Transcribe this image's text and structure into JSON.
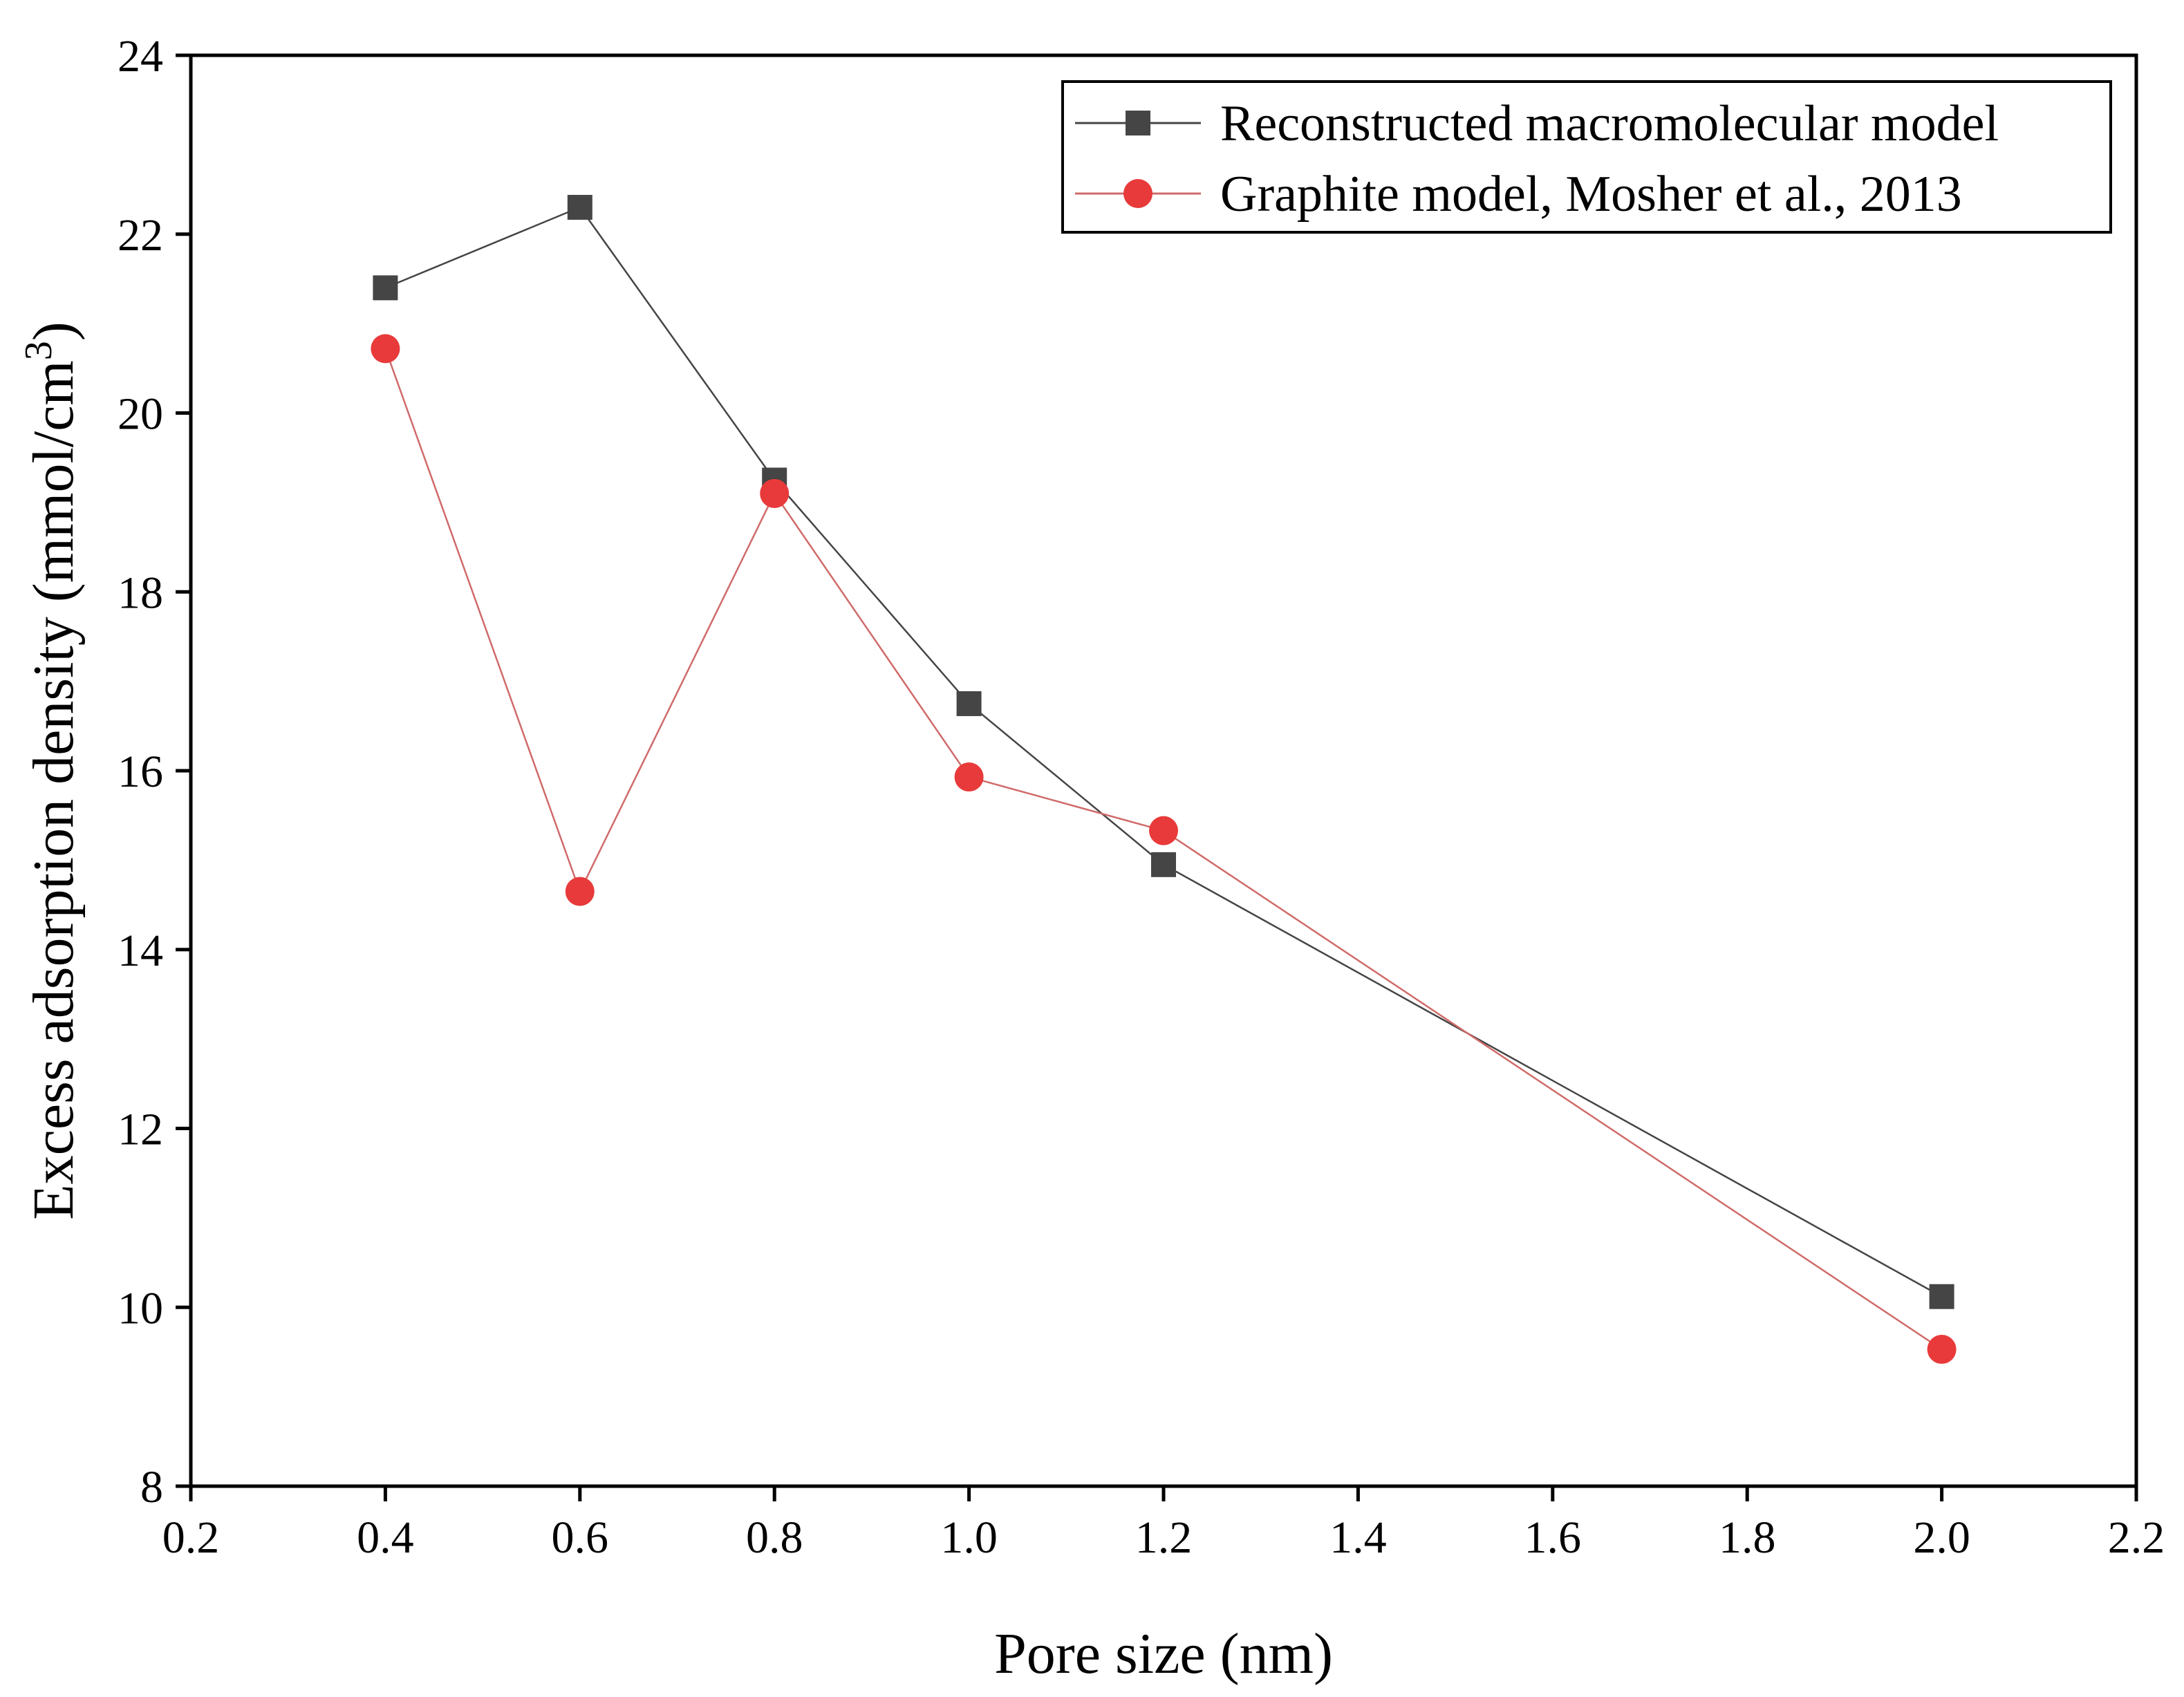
{
  "chart_data": {
    "type": "line",
    "title": "",
    "xlabel": "Pore size (nm)",
    "ylabel": "Excess adsorption density (mmol/cm",
    "ylabel_superscript": "3",
    "ylabel_suffix": ")",
    "xlim": [
      0.2,
      2.2
    ],
    "ylim": [
      8,
      24
    ],
    "x_ticks": [
      0.2,
      0.4,
      0.6,
      0.8,
      1.0,
      1.2,
      1.4,
      1.6,
      1.8,
      2.0,
      2.2
    ],
    "x_tick_labels": [
      "0.2",
      "0.4",
      "0.6",
      "0.8",
      "1.0",
      "1.2",
      "1.4",
      "1.6",
      "1.8",
      "2.0",
      "2.2"
    ],
    "y_ticks": [
      8,
      10,
      12,
      14,
      16,
      18,
      20,
      22,
      24
    ],
    "y_tick_labels": [
      "8",
      "10",
      "12",
      "14",
      "16",
      "18",
      "20",
      "22",
      "24"
    ],
    "grid": false,
    "legend_position": "top-right",
    "series": [
      {
        "name": "Reconstructed macromolecular model",
        "marker": "square",
        "color": "#454545",
        "line_color": "#454545",
        "x": [
          0.4,
          0.6,
          0.8,
          1.0,
          1.2,
          2.0
        ],
        "y": [
          21.4,
          22.3,
          19.25,
          16.75,
          14.95,
          10.12
        ]
      },
      {
        "name": "Graphite model, Mosher et al., 2013",
        "marker": "circle",
        "color": "#e83a3a",
        "line_color": "#d06a6a",
        "x": [
          0.4,
          0.6,
          0.8,
          1.0,
          1.2,
          2.0
        ],
        "y": [
          20.72,
          14.65,
          19.1,
          15.93,
          15.33,
          9.53
        ]
      }
    ]
  }
}
